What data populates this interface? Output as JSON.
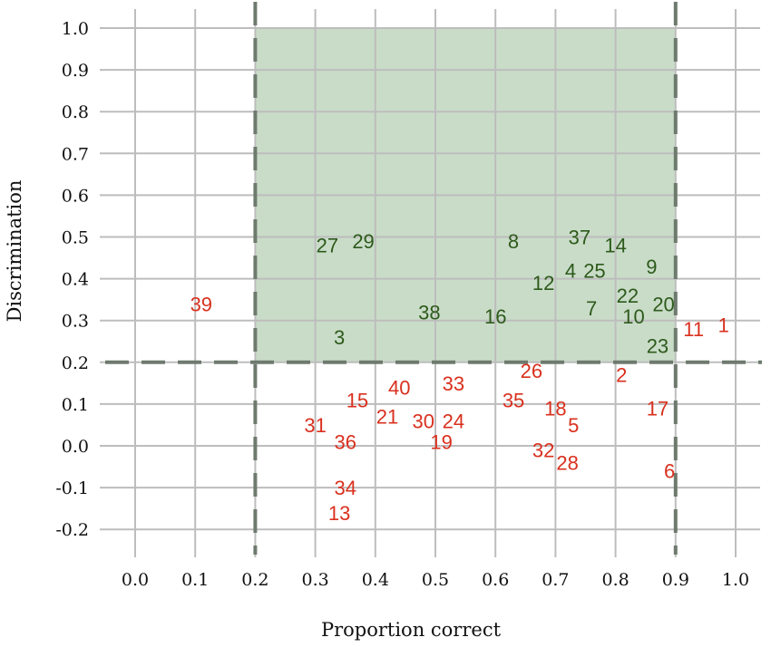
{
  "chart_data": {
    "type": "scatter",
    "xlabel": "Proportion correct",
    "ylabel": "Discrimination",
    "xlim": [
      -0.05,
      1.05
    ],
    "ylim": [
      -0.25,
      1.05
    ],
    "x_ticks": [
      "0.0",
      "0.1",
      "0.2",
      "0.3",
      "0.4",
      "0.5",
      "0.6",
      "0.7",
      "0.8",
      "0.9",
      "1.0"
    ],
    "y_ticks": [
      "1.0",
      "0.9",
      "0.8",
      "0.7",
      "0.6",
      "0.5",
      "0.4",
      "0.3",
      "0.2",
      "0.1",
      "0.0",
      "-0.1",
      "-0.2"
    ],
    "grid": true,
    "region": {
      "x": [
        0.2,
        0.9
      ],
      "y": [
        0.2,
        1.0
      ],
      "fill": "#c9dcc8"
    },
    "thresholds": {
      "x": [
        0.2,
        0.9
      ],
      "y": 0.2
    },
    "colors": {
      "in_region": "#2d5a1b",
      "out_region": "#d9301e",
      "grid": "#bdbdbd",
      "threshold_line": "#6e7a6e"
    },
    "points": [
      {
        "label": "27",
        "x": 0.32,
        "y": 0.48,
        "group": "in"
      },
      {
        "label": "29",
        "x": 0.38,
        "y": 0.49,
        "group": "in"
      },
      {
        "label": "8",
        "x": 0.63,
        "y": 0.49,
        "group": "in"
      },
      {
        "label": "37",
        "x": 0.74,
        "y": 0.5,
        "group": "in"
      },
      {
        "label": "14",
        "x": 0.8,
        "y": 0.48,
        "group": "in"
      },
      {
        "label": "9",
        "x": 0.86,
        "y": 0.43,
        "group": "in"
      },
      {
        "label": "4",
        "x": 0.725,
        "y": 0.42,
        "group": "in"
      },
      {
        "label": "25",
        "x": 0.765,
        "y": 0.42,
        "group": "in"
      },
      {
        "label": "12",
        "x": 0.68,
        "y": 0.39,
        "group": "in"
      },
      {
        "label": "22",
        "x": 0.82,
        "y": 0.36,
        "group": "in"
      },
      {
        "label": "7",
        "x": 0.76,
        "y": 0.33,
        "group": "in"
      },
      {
        "label": "20",
        "x": 0.88,
        "y": 0.34,
        "group": "in"
      },
      {
        "label": "38",
        "x": 0.49,
        "y": 0.32,
        "group": "in"
      },
      {
        "label": "16",
        "x": 0.6,
        "y": 0.31,
        "group": "in"
      },
      {
        "label": "10",
        "x": 0.83,
        "y": 0.31,
        "group": "in"
      },
      {
        "label": "3",
        "x": 0.34,
        "y": 0.26,
        "group": "in"
      },
      {
        "label": "23",
        "x": 0.87,
        "y": 0.24,
        "group": "in"
      },
      {
        "label": "39",
        "x": 0.11,
        "y": 0.34,
        "group": "out"
      },
      {
        "label": "11",
        "x": 0.93,
        "y": 0.28,
        "group": "out"
      },
      {
        "label": "1",
        "x": 0.98,
        "y": 0.29,
        "group": "out"
      },
      {
        "label": "26",
        "x": 0.66,
        "y": 0.18,
        "group": "out"
      },
      {
        "label": "2",
        "x": 0.81,
        "y": 0.17,
        "group": "out"
      },
      {
        "label": "40",
        "x": 0.44,
        "y": 0.14,
        "group": "out"
      },
      {
        "label": "33",
        "x": 0.53,
        "y": 0.15,
        "group": "out"
      },
      {
        "label": "15",
        "x": 0.37,
        "y": 0.11,
        "group": "out"
      },
      {
        "label": "35",
        "x": 0.63,
        "y": 0.11,
        "group": "out"
      },
      {
        "label": "18",
        "x": 0.7,
        "y": 0.09,
        "group": "out"
      },
      {
        "label": "17",
        "x": 0.87,
        "y": 0.09,
        "group": "out"
      },
      {
        "label": "21",
        "x": 0.42,
        "y": 0.07,
        "group": "out"
      },
      {
        "label": "30",
        "x": 0.48,
        "y": 0.06,
        "group": "out"
      },
      {
        "label": "24",
        "x": 0.53,
        "y": 0.06,
        "group": "out"
      },
      {
        "label": "5",
        "x": 0.73,
        "y": 0.05,
        "group": "out"
      },
      {
        "label": "31",
        "x": 0.3,
        "y": 0.05,
        "group": "out"
      },
      {
        "label": "36",
        "x": 0.35,
        "y": 0.01,
        "group": "out"
      },
      {
        "label": "19",
        "x": 0.51,
        "y": 0.01,
        "group": "out"
      },
      {
        "label": "32",
        "x": 0.68,
        "y": -0.01,
        "group": "out"
      },
      {
        "label": "28",
        "x": 0.72,
        "y": -0.04,
        "group": "out"
      },
      {
        "label": "6",
        "x": 0.89,
        "y": -0.06,
        "group": "out"
      },
      {
        "label": "34",
        "x": 0.35,
        "y": -0.1,
        "group": "out"
      },
      {
        "label": "13",
        "x": 0.34,
        "y": -0.16,
        "group": "out"
      }
    ]
  }
}
